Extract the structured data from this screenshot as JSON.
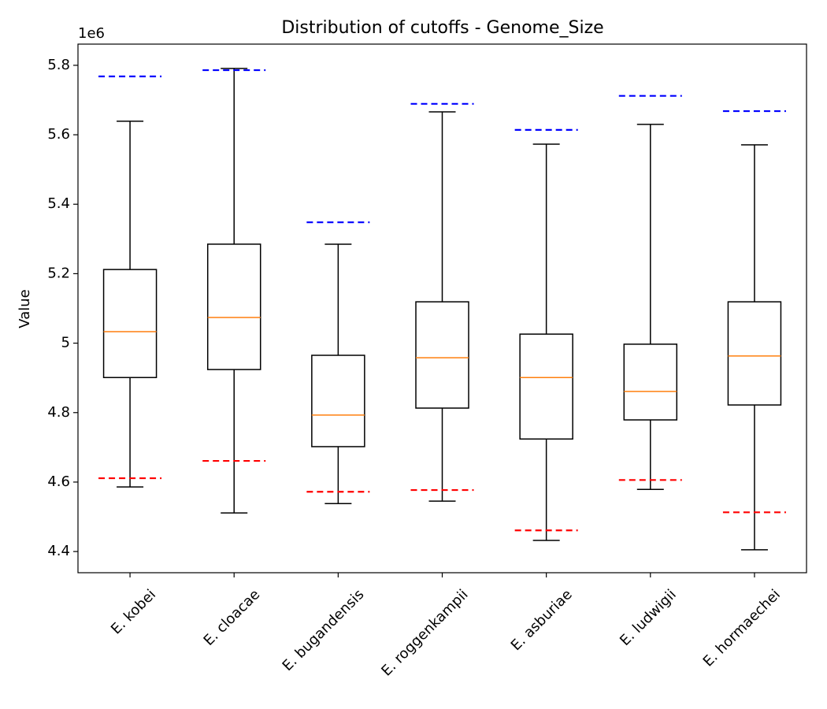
{
  "chart_data": {
    "type": "box",
    "title": "Distribution of cutoffs - Genome_Size",
    "y_label": "Value",
    "y_offset_label": "1e6",
    "categories": [
      "E. kobei",
      "E. cloacae",
      "E. bugandensis",
      "E. roggenkampii",
      "E. asburiae",
      "E. ludwigii",
      "E. hormaechei"
    ],
    "boxes": [
      {
        "low": 4.586,
        "q1": 4.901,
        "median": 5.033,
        "q3": 5.212,
        "high": 5.639
      },
      {
        "low": 4.511,
        "q1": 4.924,
        "median": 5.074,
        "q3": 5.285,
        "high": 5.791
      },
      {
        "low": 4.538,
        "q1": 4.702,
        "median": 4.793,
        "q3": 4.965,
        "high": 5.285
      },
      {
        "low": 4.545,
        "q1": 4.813,
        "median": 4.958,
        "q3": 5.119,
        "high": 5.666
      },
      {
        "low": 4.432,
        "q1": 4.724,
        "median": 4.901,
        "q3": 5.026,
        "high": 5.573
      },
      {
        "low": 4.579,
        "q1": 4.779,
        "median": 4.861,
        "q3": 4.997,
        "high": 5.63
      },
      {
        "low": 4.405,
        "q1": 4.822,
        "median": 4.963,
        "q3": 5.119,
        "high": 5.571
      }
    ],
    "box_color": "#000000",
    "median_color": "#ff7f0e",
    "lower_cutoffs": {
      "color": "#ff0000",
      "values": [
        4.611,
        4.661,
        4.572,
        4.577,
        4.461,
        4.606,
        4.513
      ]
    },
    "upper_cutoffs": {
      "color": "#0000ff",
      "values": [
        5.768,
        5.786,
        5.348,
        5.689,
        5.614,
        5.712,
        5.668
      ]
    },
    "ylim": [
      4.339,
      5.861
    ],
    "yticks": [
      4.4,
      4.6,
      4.8,
      5.0,
      5.2,
      5.4,
      5.6,
      5.8
    ]
  }
}
